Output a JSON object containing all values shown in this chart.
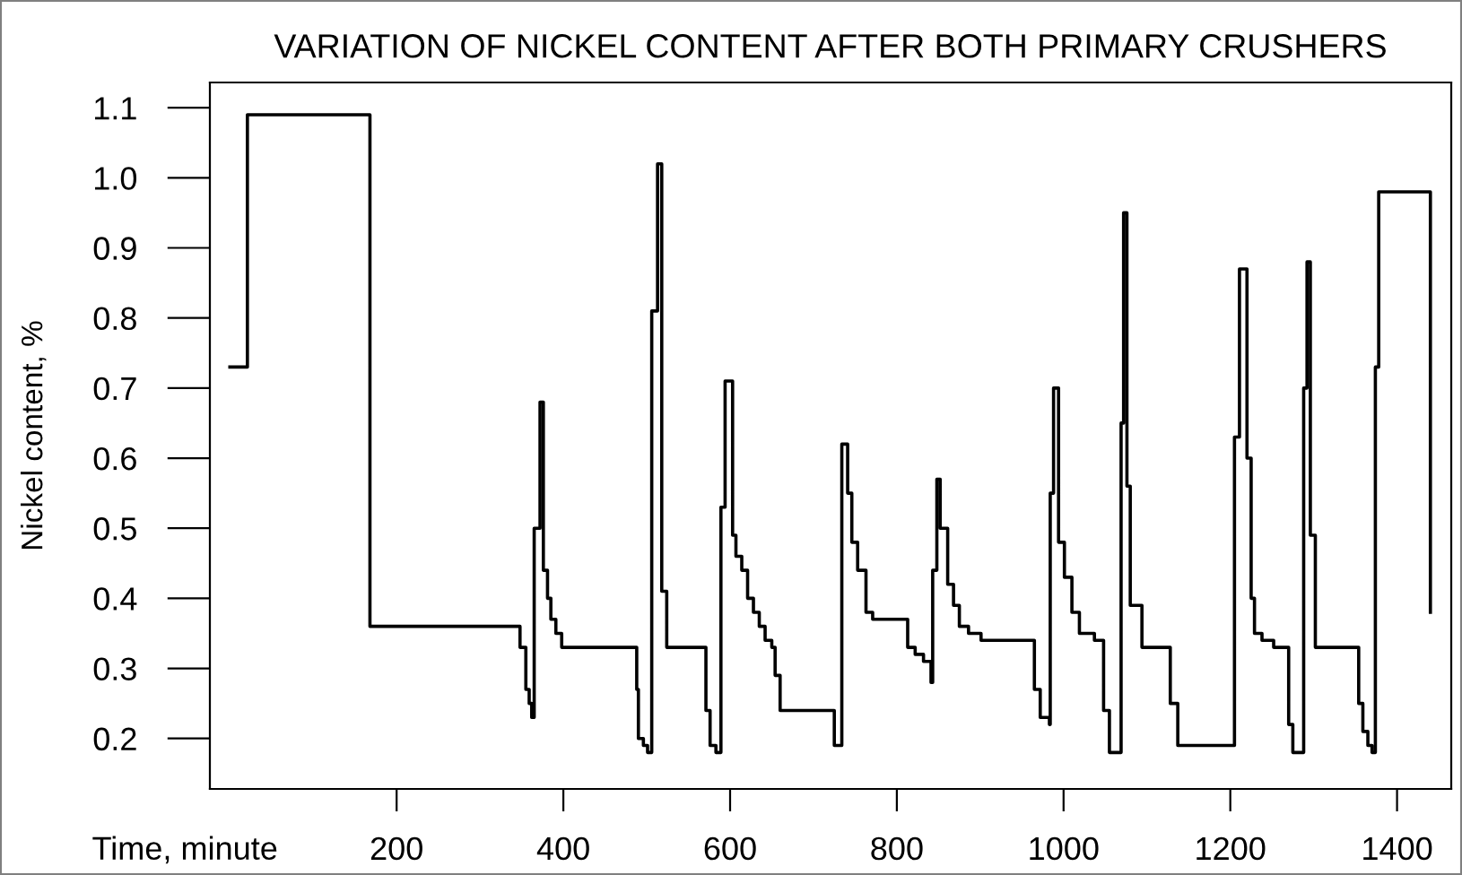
{
  "chart_data": {
    "type": "step",
    "title": "VARIATION OF NICKEL CONTENT AFTER BOTH PRIMARY CRUSHERS",
    "xlabel": "Time, minute",
    "ylabel": "Nickel content, %",
    "xlim": [
      -24,
      1465
    ],
    "ylim": [
      0.128,
      1.136
    ],
    "xticks": [
      200,
      400,
      600,
      800,
      1000,
      1200,
      1400
    ],
    "yticks": [
      0.2,
      0.3,
      0.4,
      0.5,
      0.6,
      0.7,
      0.8,
      0.9,
      {
        "value": 1.0,
        "label": "1.0"
      },
      1.1
    ],
    "grid": false,
    "line_style": "solid",
    "marker": "none",
    "series": [
      {
        "color": "#000000",
        "x": [
          0,
          21,
          168,
          348,
          355,
          359,
          362,
          365,
          372,
          376,
          381,
          385,
          391,
          398,
          488,
          490,
          496,
          501,
          506,
          513,
          518,
          524,
          571,
          576,
          583,
          589,
          594,
          603,
          607,
          614,
          621,
          628,
          635,
          642,
          650,
          654,
          660,
          725,
          734,
          741,
          746,
          753,
          763,
          771,
          786,
          813,
          822,
          832,
          841,
          843,
          848,
          852,
          861,
          868,
          875,
          886,
          901,
          965,
          972,
          983,
          984,
          988,
          994,
          1001,
          1010,
          1019,
          1037,
          1048,
          1055,
          1069,
          1072,
          1076,
          1080,
          1094,
          1128,
          1137,
          1205,
          1211,
          1220,
          1225,
          1229,
          1238,
          1252,
          1270,
          1275,
          1288,
          1292,
          1296,
          1302,
          1354,
          1359,
          1365,
          1370,
          1374,
          1378,
          1440
        ],
        "values": [
          0.73,
          1.09,
          0.36,
          0.33,
          0.27,
          0.25,
          0.23,
          0.5,
          0.68,
          0.44,
          0.4,
          0.37,
          0.35,
          0.33,
          0.27,
          0.2,
          0.19,
          0.18,
          0.81,
          1.02,
          0.41,
          0.33,
          0.24,
          0.19,
          0.18,
          0.53,
          0.71,
          0.49,
          0.46,
          0.44,
          0.4,
          0.38,
          0.36,
          0.34,
          0.33,
          0.29,
          0.24,
          0.19,
          0.62,
          0.55,
          0.48,
          0.44,
          0.38,
          0.37,
          0.37,
          0.33,
          0.32,
          0.31,
          0.28,
          0.44,
          0.57,
          0.5,
          0.42,
          0.39,
          0.36,
          0.35,
          0.34,
          0.27,
          0.23,
          0.22,
          0.55,
          0.7,
          0.48,
          0.43,
          0.38,
          0.35,
          0.34,
          0.24,
          0.18,
          0.65,
          0.95,
          0.56,
          0.39,
          0.33,
          0.25,
          0.19,
          0.63,
          0.87,
          0.6,
          0.4,
          0.35,
          0.34,
          0.33,
          0.22,
          0.18,
          0.7,
          0.88,
          0.49,
          0.33,
          0.25,
          0.21,
          0.19,
          0.18,
          0.73,
          0.98,
          0.38
        ]
      }
    ]
  }
}
